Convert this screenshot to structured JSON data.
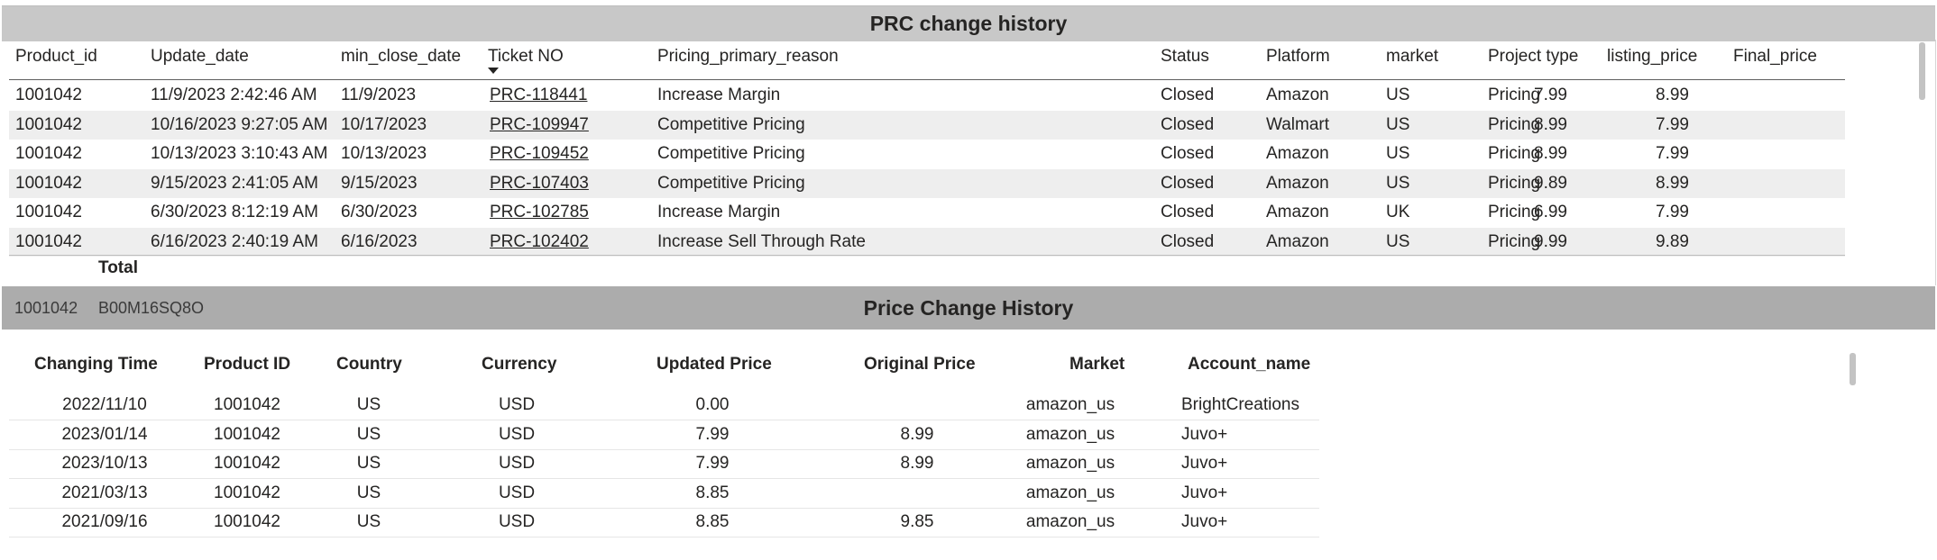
{
  "prc": {
    "title": "PRC change history",
    "columns": {
      "product_id": "Product_id",
      "update_date": "Update_date",
      "min_close_date": "min_close_date",
      "ticket_no": "Ticket NO",
      "reason": "Pricing_primary_reason",
      "status": "Status",
      "platform": "Platform",
      "market": "market",
      "project_type": "Project type",
      "listing_price": "listing_price",
      "final_price": "Final_price"
    },
    "sort_icon": "sort-descending-icon",
    "rows": [
      {
        "product_id": "1001042",
        "update_date": "11/9/2023 2:42:46 AM",
        "min_close_date": "11/9/2023",
        "ticket_no": "PRC-118441",
        "reason": "Increase Margin",
        "status": "Closed",
        "platform": "Amazon",
        "market": "US",
        "project_type": "Pricing",
        "listing_price": "7.99",
        "final_price": "8.99"
      },
      {
        "product_id": "1001042",
        "update_date": "10/16/2023 9:27:05 AM",
        "min_close_date": "10/17/2023",
        "ticket_no": "PRC-109947",
        "reason": "Competitive Pricing",
        "status": "Closed",
        "platform": "Walmart",
        "market": "US",
        "project_type": "Pricing",
        "listing_price": "8.99",
        "final_price": "7.99"
      },
      {
        "product_id": "1001042",
        "update_date": "10/13/2023 3:10:43 AM",
        "min_close_date": "10/13/2023",
        "ticket_no": "PRC-109452",
        "reason": "Competitive Pricing",
        "status": "Closed",
        "platform": "Amazon",
        "market": "US",
        "project_type": "Pricing",
        "listing_price": "8.99",
        "final_price": "7.99"
      },
      {
        "product_id": "1001042",
        "update_date": "9/15/2023 2:41:05 AM",
        "min_close_date": "9/15/2023",
        "ticket_no": "PRC-107403",
        "reason": "Competitive Pricing",
        "status": "Closed",
        "platform": "Amazon",
        "market": "US",
        "project_type": "Pricing",
        "listing_price": "9.89",
        "final_price": "8.99"
      },
      {
        "product_id": "1001042",
        "update_date": "6/30/2023 8:12:19 AM",
        "min_close_date": "6/30/2023",
        "ticket_no": "PRC-102785",
        "reason": "Increase Margin",
        "status": "Closed",
        "platform": "Amazon",
        "market": "UK",
        "project_type": "Pricing",
        "listing_price": "6.99",
        "final_price": "7.99"
      },
      {
        "product_id": "1001042",
        "update_date": "6/16/2023 2:40:19 AM",
        "min_close_date": "6/16/2023",
        "ticket_no": "PRC-102402",
        "reason": "Increase Sell Through Rate",
        "status": "Closed",
        "platform": "Amazon",
        "market": "US",
        "project_type": "Pricing",
        "listing_price": "9.99",
        "final_price": "9.89"
      }
    ],
    "total_label": "Total"
  },
  "price_history": {
    "product_id": "1001042",
    "asin": "B00M16SQ8O",
    "title": "Price Change History",
    "columns": {
      "changing_time": "Changing Time",
      "product_id": "Product ID",
      "country": "Country",
      "currency": "Currency",
      "updated_price": "Updated Price",
      "original_price": "Original Price",
      "market": "Market",
      "account_name": "Account_name"
    },
    "rows": [
      {
        "changing_time": "2022/11/10",
        "product_id": "1001042",
        "country": "US",
        "currency": "USD",
        "updated_price": "0.00",
        "original_price": "",
        "market": "amazon_us",
        "account_name": "BrightCreations"
      },
      {
        "changing_time": "2023/01/14",
        "product_id": "1001042",
        "country": "US",
        "currency": "USD",
        "updated_price": "7.99",
        "original_price": "8.99",
        "market": "amazon_us",
        "account_name": "Juvo+"
      },
      {
        "changing_time": "2023/10/13",
        "product_id": "1001042",
        "country": "US",
        "currency": "USD",
        "updated_price": "7.99",
        "original_price": "8.99",
        "market": "amazon_us",
        "account_name": "Juvo+"
      },
      {
        "changing_time": "2021/03/13",
        "product_id": "1001042",
        "country": "US",
        "currency": "USD",
        "updated_price": "8.85",
        "original_price": "",
        "market": "amazon_us",
        "account_name": "Juvo+"
      },
      {
        "changing_time": "2021/09/16",
        "product_id": "1001042",
        "country": "US",
        "currency": "USD",
        "updated_price": "8.85",
        "original_price": "9.85",
        "market": "amazon_us",
        "account_name": "Juvo+"
      }
    ]
  },
  "colors": {
    "title_bar": "#c8c8c8",
    "section_bar": "#acacac",
    "row_alt": "#eeeeee",
    "text": "#252423"
  }
}
